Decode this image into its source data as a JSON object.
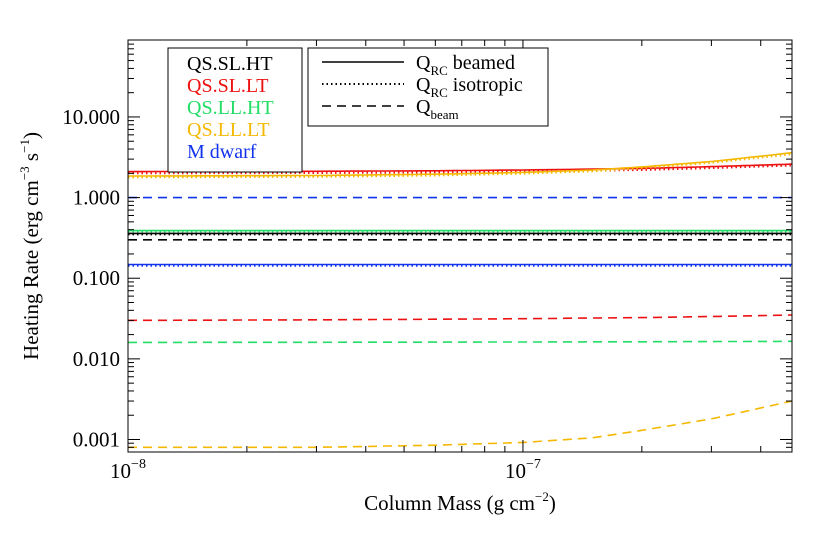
{
  "chart_data": {
    "type": "line",
    "xscale": "log",
    "yscale": "log",
    "xlim": [
      1e-08,
      4.8e-07
    ],
    "ylim": [
      0.0007,
      90
    ],
    "xlabel": {
      "main": "Column Mass (g cm",
      "sup": "−2",
      "close": ")"
    },
    "ylabel": {
      "main": "Heating Rate (erg cm",
      "sup1": "−3",
      "mid": " s",
      "sup2": "−1",
      "close": ")"
    },
    "x_ticks": [
      {
        "value": 1e-08,
        "base": "10",
        "exp": "−8"
      },
      {
        "value": 1e-07,
        "base": "10",
        "exp": "−7"
      }
    ],
    "y_ticks": [
      {
        "value": 0.001,
        "label": "0.001"
      },
      {
        "value": 0.01,
        "label": "0.010"
      },
      {
        "value": 0.1,
        "label": "0.100"
      },
      {
        "value": 1,
        "label": "1.000"
      },
      {
        "value": 10,
        "label": "10.000"
      }
    ],
    "colors": {
      "QS.SL.HT": "#000000",
      "QS.SL.LT": "#ee1111",
      "QS.LL.HT": "#22dd66",
      "QS.LL.LT": "#f5b800",
      "M dwarf": "#1133ee"
    },
    "models_legend": [
      "QS.SL.HT",
      "QS.SL.LT",
      "QS.LL.HT",
      "QS.LL.LT",
      "M dwarf"
    ],
    "style_legend": [
      {
        "style": "solid",
        "main": "Q",
        "sub": "RC",
        "rest": " beamed"
      },
      {
        "style": "dotted",
        "main": "Q",
        "sub": "RC",
        "rest": " isotropic"
      },
      {
        "style": "dashed",
        "main": "Q",
        "sub": "beam",
        "rest": ""
      }
    ],
    "series": [
      {
        "model": "QS.SL.HT",
        "quantity": "Q_RC beamed",
        "style": "solid",
        "x": [
          1e-08,
          5e-08,
          1e-07,
          2e-07,
          4.8e-07
        ],
        "y": [
          0.36,
          0.36,
          0.36,
          0.36,
          0.36
        ]
      },
      {
        "model": "QS.SL.HT",
        "quantity": "Q_RC isotropic",
        "style": "dotted",
        "x": [
          1e-08,
          5e-08,
          1e-07,
          2e-07,
          4.8e-07
        ],
        "y": [
          0.35,
          0.35,
          0.35,
          0.35,
          0.35
        ]
      },
      {
        "model": "QS.SL.HT",
        "quantity": "Q_beam",
        "style": "dashed",
        "x": [
          1e-08,
          5e-08,
          1e-07,
          2e-07,
          4.8e-07
        ],
        "y": [
          0.3,
          0.3,
          0.3,
          0.3,
          0.3
        ]
      },
      {
        "model": "QS.SL.LT",
        "quantity": "Q_RC beamed",
        "style": "solid",
        "x": [
          1e-08,
          3e-08,
          6e-08,
          1e-07,
          2e-07,
          3e-07,
          4.8e-07
        ],
        "y": [
          2.1,
          2.12,
          2.15,
          2.2,
          2.3,
          2.42,
          2.6
        ]
      },
      {
        "model": "QS.SL.LT",
        "quantity": "Q_RC isotropic",
        "style": "dotted",
        "x": [
          1e-08,
          3e-08,
          6e-08,
          1e-07,
          2e-07,
          3e-07,
          4.8e-07
        ],
        "y": [
          2.0,
          2.02,
          2.05,
          2.1,
          2.2,
          2.32,
          2.5
        ]
      },
      {
        "model": "QS.SL.LT",
        "quantity": "Q_beam",
        "style": "dashed",
        "x": [
          1e-08,
          3e-08,
          6e-08,
          1e-07,
          2e-07,
          3e-07,
          4.8e-07
        ],
        "y": [
          0.03,
          0.0305,
          0.031,
          0.0315,
          0.0325,
          0.0335,
          0.035
        ]
      },
      {
        "model": "QS.LL.HT",
        "quantity": "Q_RC beamed",
        "style": "solid",
        "x": [
          1e-08,
          5e-08,
          1e-07,
          2e-07,
          4.8e-07
        ],
        "y": [
          0.39,
          0.39,
          0.39,
          0.39,
          0.39
        ]
      },
      {
        "model": "QS.LL.HT",
        "quantity": "Q_RC isotropic",
        "style": "dotted",
        "x": [
          1e-08,
          5e-08,
          1e-07,
          2e-07,
          4.8e-07
        ],
        "y": [
          0.38,
          0.38,
          0.38,
          0.38,
          0.38
        ]
      },
      {
        "model": "QS.LL.HT",
        "quantity": "Q_beam",
        "style": "dashed",
        "x": [
          1e-08,
          5e-08,
          1e-07,
          2e-07,
          4.8e-07
        ],
        "y": [
          0.016,
          0.0161,
          0.0162,
          0.0163,
          0.0165
        ]
      },
      {
        "model": "QS.LL.LT",
        "quantity": "Q_RC beamed",
        "style": "solid",
        "x": [
          1e-08,
          3e-08,
          6e-08,
          1e-07,
          1.5e-07,
          2e-07,
          3e-07,
          4.8e-07
        ],
        "y": [
          1.85,
          1.88,
          1.95,
          2.05,
          2.2,
          2.4,
          2.8,
          3.6
        ]
      },
      {
        "model": "QS.LL.LT",
        "quantity": "Q_RC isotropic",
        "style": "dotted",
        "x": [
          1e-08,
          3e-08,
          6e-08,
          1e-07,
          1.5e-07,
          2e-07,
          3e-07,
          4.8e-07
        ],
        "y": [
          1.78,
          1.81,
          1.88,
          1.98,
          2.12,
          2.32,
          2.7,
          3.45
        ]
      },
      {
        "model": "QS.LL.LT",
        "quantity": "Q_beam",
        "style": "dashed",
        "x": [
          1e-08,
          3e-08,
          6e-08,
          1e-07,
          1.5e-07,
          2e-07,
          3e-07,
          4.8e-07
        ],
        "y": [
          0.0008,
          0.0008,
          0.00085,
          0.00092,
          0.00105,
          0.0013,
          0.0018,
          0.003
        ]
      },
      {
        "model": "M dwarf",
        "quantity": "Q_RC beamed",
        "style": "solid",
        "x": [
          1e-08,
          5e-08,
          1e-07,
          2e-07,
          4.8e-07
        ],
        "y": [
          0.148,
          0.148,
          0.148,
          0.148,
          0.148
        ]
      },
      {
        "model": "M dwarf",
        "quantity": "Q_RC isotropic",
        "style": "dotted",
        "x": [
          1e-08,
          5e-08,
          1e-07,
          2e-07,
          4.8e-07
        ],
        "y": [
          0.143,
          0.143,
          0.143,
          0.143,
          0.143
        ]
      },
      {
        "model": "M dwarf",
        "quantity": "Q_beam",
        "style": "dashed",
        "x": [
          1e-08,
          5e-08,
          1e-07,
          2e-07,
          4.8e-07
        ],
        "y": [
          1.0,
          1.0,
          1.0,
          1.0,
          1.0
        ]
      }
    ]
  }
}
